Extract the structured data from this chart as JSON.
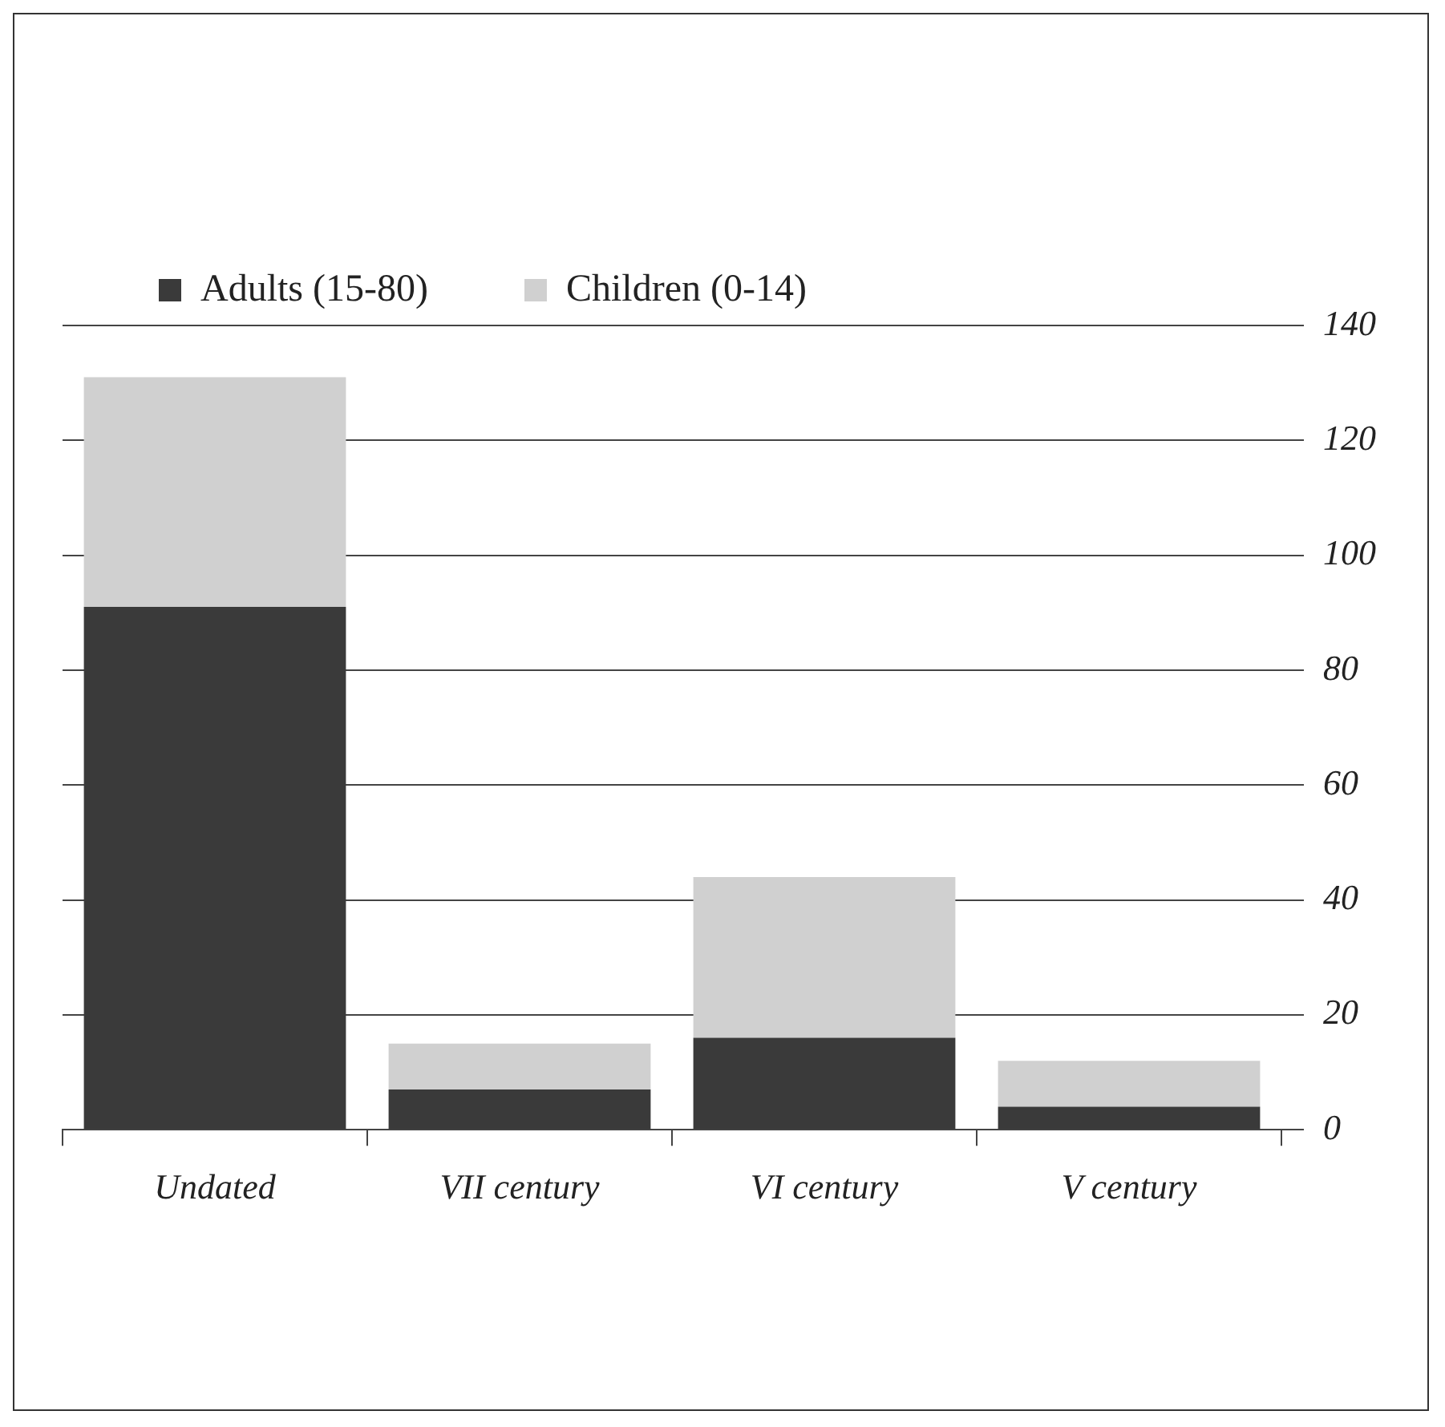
{
  "chart_data": {
    "type": "bar",
    "stacked": true,
    "categories": [
      "Undated",
      "VII century",
      "VI century",
      "V century"
    ],
    "series": [
      {
        "name": "Adults (15-80)",
        "color": "#3a3a3a",
        "values": [
          91,
          7,
          16,
          4
        ]
      },
      {
        "name": "Children (0-14)",
        "color": "#d0d0d0",
        "values": [
          40,
          8,
          28,
          8
        ]
      }
    ],
    "ylim": [
      0,
      140
    ],
    "yticks": [
      0,
      20,
      40,
      60,
      80,
      100,
      120,
      140
    ],
    "grid": "y",
    "legend": "top"
  }
}
